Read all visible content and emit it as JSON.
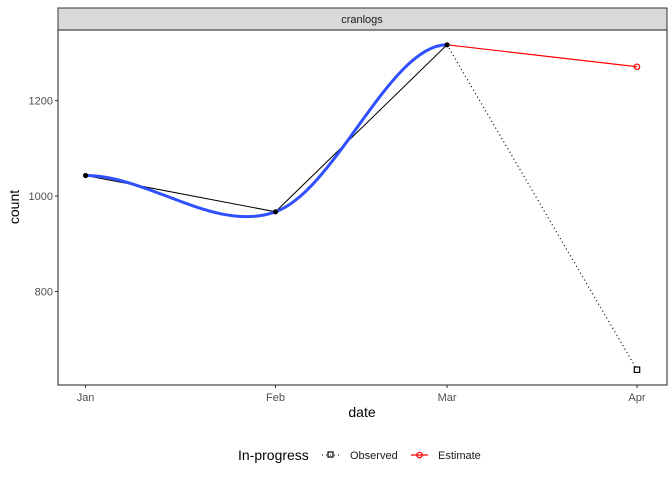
{
  "chart_data": {
    "type": "line",
    "facet_label": "cranlogs",
    "xlabel": "date",
    "ylabel": "count",
    "x_ticks": [
      "Jan",
      "Feb",
      "Mar",
      "Apr"
    ],
    "y_ticks": [
      800,
      1000,
      1200
    ],
    "ylim": [
      604,
      1348
    ],
    "grid": false,
    "legend": {
      "title": "In-progress",
      "placement": "bottom",
      "entries": [
        "Observed",
        "Estimate"
      ]
    },
    "series": [
      {
        "role": "observed-line",
        "x": [
          "Jan",
          "Feb",
          "Mar"
        ],
        "y": [
          1043,
          967,
          1317
        ],
        "color": "#000000"
      },
      {
        "role": "smooth",
        "x": [
          "Jan",
          "Feb",
          "Mar"
        ],
        "y": [
          1043,
          967,
          1317
        ],
        "color": "#3050ff"
      },
      {
        "name": "Observed",
        "x": [
          "Mar",
          "Apr"
        ],
        "y": [
          1317,
          636
        ],
        "color": "#000000",
        "linetype": "dotted",
        "marker": "square-open"
      },
      {
        "name": "Estimate",
        "x": [
          "Mar",
          "Apr"
        ],
        "y": [
          1317,
          1271
        ],
        "color": "#ff0000",
        "linetype": "solid",
        "marker": "circle-open"
      }
    ]
  }
}
